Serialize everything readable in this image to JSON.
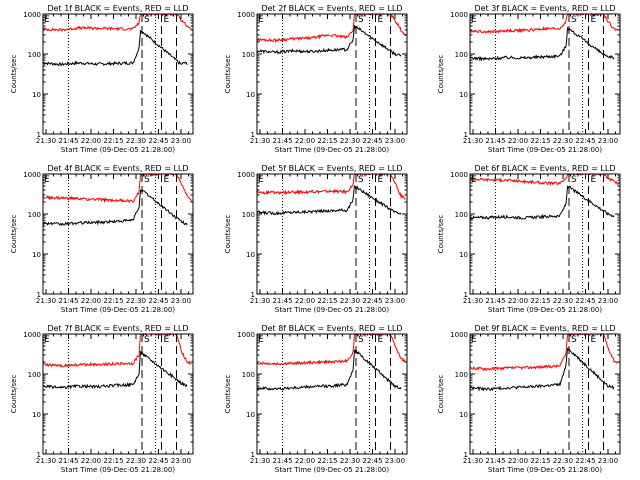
{
  "figure": {
    "background": "#ffffff",
    "axis_color": "#000000",
    "events_color": "#000000",
    "lld_color": "#ff0000",
    "marker_labels": [
      "E",
      "S",
      "E"
    ]
  },
  "chart_data": [
    {
      "type": "line",
      "title": "Det 1f BLACK = Events, RED = LLD",
      "xlabel": "Start Time (09-Dec-05 21:28:00)",
      "ylabel": "Counts/sec",
      "yscale": "log",
      "ylim": [
        1,
        1000
      ],
      "xlim": [
        "21:28",
        "23:08"
      ],
      "x_ticks": [
        "21:30",
        "21:45",
        "22:00",
        "22:15",
        "22:30",
        "22:45",
        "23:00"
      ],
      "y_ticks": [
        "1",
        "10",
        "100",
        "1000"
      ],
      "grid": false,
      "series": [
        {
          "name": "Events",
          "color": "#000000",
          "x": [
            "21:28",
            "21:40",
            "21:52",
            "22:04",
            "22:16",
            "22:28",
            "22:32",
            "22:33",
            "23:00",
            "23:02",
            "23:04"
          ],
          "y": [
            60,
            55,
            60,
            56,
            58,
            60,
            140,
            400,
            55,
            60,
            58
          ]
        },
        {
          "name": "LLD",
          "color": "#ff0000",
          "x": [
            "21:28",
            "21:40",
            "21:52",
            "22:04",
            "22:16",
            "22:28",
            "22:32",
            "22:33",
            "22:57",
            "23:00",
            "23:04",
            "23:07"
          ],
          "y": [
            420,
            400,
            450,
            440,
            430,
            420,
            600,
            1000,
            1000,
            700,
            500,
            440
          ]
        }
      ],
      "vlines": [
        {
          "time": "21:45",
          "style": "dotted"
        },
        {
          "time": "22:34",
          "style": "dashed",
          "label": "S"
        },
        {
          "time": "22:43",
          "style": "dotted"
        },
        {
          "time": "22:47",
          "style": "dashed",
          "label": "E"
        },
        {
          "time": "22:57",
          "style": "dashed"
        }
      ]
    },
    {
      "type": "line",
      "title": "Det 2f BLACK = Events, RED = LLD",
      "xlabel": "Start Time (09-Dec-05 21:28:00)",
      "ylabel": "Counts/sec",
      "yscale": "log",
      "ylim": [
        1,
        1000
      ],
      "xlim": [
        "21:28",
        "23:08"
      ],
      "x_ticks": [
        "21:30",
        "21:45",
        "22:00",
        "22:15",
        "22:30",
        "22:45",
        "23:00"
      ],
      "y_ticks": [
        "1",
        "10",
        "100",
        "1000"
      ],
      "grid": false,
      "series": [
        {
          "name": "Events",
          "color": "#000000",
          "x": [
            "21:28",
            "21:40",
            "21:52",
            "22:04",
            "22:16",
            "22:28",
            "22:32",
            "22:33",
            "23:00",
            "23:02",
            "23:04"
          ],
          "y": [
            120,
            110,
            120,
            115,
            125,
            130,
            220,
            500,
            100,
            95,
            90
          ]
        },
        {
          "name": "LLD",
          "color": "#ff0000",
          "x": [
            "21:28",
            "21:40",
            "21:52",
            "22:04",
            "22:16",
            "22:28",
            "22:32",
            "22:33",
            "22:57",
            "23:00",
            "23:04",
            "23:07"
          ],
          "y": [
            230,
            220,
            240,
            250,
            300,
            260,
            400,
            1000,
            1000,
            700,
            400,
            300
          ]
        }
      ],
      "vlines": [
        {
          "time": "21:45",
          "style": "dotted"
        },
        {
          "time": "22:34",
          "style": "dashed",
          "label": "S"
        },
        {
          "time": "22:43",
          "style": "dotted"
        },
        {
          "time": "22:47",
          "style": "dashed",
          "label": "E"
        },
        {
          "time": "22:57",
          "style": "dashed"
        }
      ]
    },
    {
      "type": "line",
      "title": "Det 3f BLACK = Events, RED = LLD",
      "xlabel": "Start Time (09-Dec-05 21:28:00)",
      "ylabel": "Counts/sec",
      "yscale": "log",
      "ylim": [
        1,
        1000
      ],
      "xlim": [
        "21:28",
        "23:08"
      ],
      "x_ticks": [
        "21:30",
        "21:45",
        "22:00",
        "22:15",
        "22:30",
        "22:45",
        "23:00"
      ],
      "y_ticks": [
        "1",
        "10",
        "100",
        "1000"
      ],
      "grid": false,
      "series": [
        {
          "name": "Events",
          "color": "#000000",
          "x": [
            "21:28",
            "21:40",
            "21:52",
            "22:04",
            "22:16",
            "22:28",
            "22:32",
            "22:33",
            "23:00",
            "23:02",
            "23:04"
          ],
          "y": [
            80,
            75,
            82,
            80,
            85,
            90,
            160,
            450,
            80,
            85,
            80
          ]
        },
        {
          "name": "LLD",
          "color": "#ff0000",
          "x": [
            "21:28",
            "21:40",
            "21:52",
            "22:04",
            "22:16",
            "22:28",
            "22:32",
            "22:33",
            "22:57",
            "23:00",
            "23:04",
            "23:07"
          ],
          "y": [
            380,
            360,
            380,
            390,
            420,
            430,
            650,
            1000,
            1000,
            650,
            420,
            380
          ]
        }
      ],
      "vlines": [
        {
          "time": "21:45",
          "style": "dotted"
        },
        {
          "time": "22:34",
          "style": "dashed",
          "label": "S"
        },
        {
          "time": "22:43",
          "style": "dotted"
        },
        {
          "time": "22:47",
          "style": "dashed",
          "label": "E"
        },
        {
          "time": "22:57",
          "style": "dashed"
        }
      ]
    },
    {
      "type": "line",
      "title": "Det 4f BLACK = Events, RED = LLD",
      "xlabel": "Start Time (09-Dec-05 21:28:00)",
      "ylabel": "Counts/sec",
      "yscale": "log",
      "ylim": [
        1,
        1000
      ],
      "xlim": [
        "21:28",
        "23:08"
      ],
      "x_ticks": [
        "21:30",
        "21:45",
        "22:00",
        "22:15",
        "22:30",
        "22:45",
        "23:00"
      ],
      "y_ticks": [
        "1",
        "10",
        "100",
        "1000"
      ],
      "grid": false,
      "series": [
        {
          "name": "Events",
          "color": "#000000",
          "x": [
            "21:28",
            "21:40",
            "21:52",
            "22:04",
            "22:16",
            "22:28",
            "22:32",
            "22:33",
            "23:00",
            "23:02",
            "23:04"
          ],
          "y": [
            60,
            55,
            60,
            62,
            65,
            70,
            150,
            420,
            65,
            60,
            55
          ]
        },
        {
          "name": "LLD",
          "color": "#ff0000",
          "x": [
            "21:28",
            "21:40",
            "21:52",
            "22:04",
            "22:16",
            "22:28",
            "22:32",
            "22:33",
            "22:57",
            "23:00",
            "23:04",
            "23:07"
          ],
          "y": [
            260,
            250,
            240,
            230,
            220,
            210,
            350,
            1000,
            1000,
            600,
            300,
            200
          ]
        }
      ],
      "vlines": [
        {
          "time": "21:45",
          "style": "dotted"
        },
        {
          "time": "22:34",
          "style": "dashed",
          "label": "S"
        },
        {
          "time": "22:43",
          "style": "dotted"
        },
        {
          "time": "22:47",
          "style": "dashed",
          "label": "E"
        },
        {
          "time": "22:57",
          "style": "dashed"
        }
      ]
    },
    {
      "type": "line",
      "title": "Det 5f BLACK = Events, RED = LLD",
      "xlabel": "Start Time (09-Dec-05 21:28:00)",
      "ylabel": "Counts/sec",
      "yscale": "log",
      "ylim": [
        1,
        1000
      ],
      "xlim": [
        "21:28",
        "23:08"
      ],
      "x_ticks": [
        "21:30",
        "21:45",
        "22:00",
        "22:15",
        "22:30",
        "22:45",
        "23:00"
      ],
      "y_ticks": [
        "1",
        "10",
        "100",
        "1000"
      ],
      "grid": false,
      "series": [
        {
          "name": "Events",
          "color": "#000000",
          "x": [
            "21:28",
            "21:40",
            "21:52",
            "22:04",
            "22:16",
            "22:28",
            "22:32",
            "22:33",
            "23:00",
            "23:02",
            "23:04"
          ],
          "y": [
            110,
            105,
            110,
            115,
            120,
            125,
            220,
            500,
            110,
            105,
            100
          ]
        },
        {
          "name": "LLD",
          "color": "#ff0000",
          "x": [
            "21:28",
            "21:40",
            "21:52",
            "22:04",
            "22:16",
            "22:28",
            "22:32",
            "22:33",
            "22:57",
            "23:00",
            "23:04",
            "23:07"
          ],
          "y": [
            350,
            340,
            350,
            360,
            370,
            360,
            550,
            1000,
            1000,
            600,
            280,
            250
          ]
        }
      ],
      "vlines": [
        {
          "time": "21:45",
          "style": "dotted"
        },
        {
          "time": "22:34",
          "style": "dashed",
          "label": "S"
        },
        {
          "time": "22:43",
          "style": "dotted"
        },
        {
          "time": "22:47",
          "style": "dashed",
          "label": "E"
        },
        {
          "time": "22:57",
          "style": "dashed"
        }
      ]
    },
    {
      "type": "line",
      "title": "Det 6f BLACK = Events, RED = LLD",
      "xlabel": "Start Time (09-Dec-05 21:28:00)",
      "ylabel": "Counts/sec",
      "yscale": "log",
      "ylim": [
        1,
        1000
      ],
      "xlim": [
        "21:28",
        "23:08"
      ],
      "x_ticks": [
        "21:30",
        "21:45",
        "22:00",
        "22:15",
        "22:30",
        "22:45",
        "23:00"
      ],
      "y_ticks": [
        "1",
        "10",
        "100",
        "1000"
      ],
      "grid": false,
      "series": [
        {
          "name": "Events",
          "color": "#000000",
          "x": [
            "21:28",
            "21:40",
            "21:52",
            "22:04",
            "22:16",
            "22:28",
            "22:32",
            "22:33",
            "23:00",
            "23:02",
            "23:04"
          ],
          "y": [
            80,
            82,
            85,
            80,
            85,
            90,
            180,
            500,
            100,
            95,
            90
          ]
        },
        {
          "name": "LLD",
          "color": "#ff0000",
          "x": [
            "21:28",
            "21:40",
            "21:52",
            "22:04",
            "22:16",
            "22:28",
            "22:32",
            "22:33",
            "22:57",
            "23:00",
            "23:04",
            "23:07"
          ],
          "y": [
            750,
            720,
            700,
            650,
            600,
            580,
            800,
            1000,
            1000,
            800,
            650,
            550
          ]
        }
      ],
      "vlines": [
        {
          "time": "21:45",
          "style": "dotted"
        },
        {
          "time": "22:34",
          "style": "dashed",
          "label": "S"
        },
        {
          "time": "22:43",
          "style": "dotted"
        },
        {
          "time": "22:47",
          "style": "dashed",
          "label": "E"
        },
        {
          "time": "22:57",
          "style": "dashed"
        }
      ]
    },
    {
      "type": "line",
      "title": "Det 7f BLACK = Events, RED = LLD",
      "xlabel": "Start Time (09-Dec-05 21:28:00)",
      "ylabel": "Counts/sec",
      "yscale": "log",
      "ylim": [
        1,
        1000
      ],
      "xlim": [
        "21:28",
        "23:08"
      ],
      "x_ticks": [
        "21:30",
        "21:45",
        "22:00",
        "22:15",
        "22:30",
        "22:45",
        "23:00"
      ],
      "y_ticks": [
        "1",
        "10",
        "100",
        "1000"
      ],
      "grid": false,
      "series": [
        {
          "name": "Events",
          "color": "#000000",
          "x": [
            "21:28",
            "21:40",
            "21:52",
            "22:04",
            "22:16",
            "22:28",
            "22:32",
            "22:33",
            "23:00",
            "23:02",
            "23:04"
          ],
          "y": [
            50,
            45,
            50,
            48,
            52,
            55,
            100,
            350,
            60,
            55,
            50
          ]
        },
        {
          "name": "LLD",
          "color": "#ff0000",
          "x": [
            "21:28",
            "21:40",
            "21:52",
            "22:04",
            "22:16",
            "22:28",
            "22:32",
            "22:33",
            "22:57",
            "23:00",
            "23:04",
            "23:07"
          ],
          "y": [
            170,
            160,
            170,
            175,
            180,
            185,
            300,
            1000,
            1000,
            400,
            200,
            180
          ]
        }
      ],
      "vlines": [
        {
          "time": "21:45",
          "style": "dotted"
        },
        {
          "time": "22:34",
          "style": "dashed",
          "label": "S"
        },
        {
          "time": "22:43",
          "style": "dotted"
        },
        {
          "time": "22:47",
          "style": "dashed",
          "label": "E"
        },
        {
          "time": "22:57",
          "style": "dashed"
        }
      ]
    },
    {
      "type": "line",
      "title": "Det 8f BLACK = Events, RED = LLD",
      "xlabel": "Start Time (09-Dec-05 21:28:00)",
      "ylabel": "Counts/sec",
      "yscale": "log",
      "ylim": [
        1,
        1000
      ],
      "xlim": [
        "21:28",
        "23:08"
      ],
      "x_ticks": [
        "21:30",
        "21:45",
        "22:00",
        "22:15",
        "22:30",
        "22:45",
        "23:00"
      ],
      "y_ticks": [
        "1",
        "10",
        "100",
        "1000"
      ],
      "grid": false,
      "series": [
        {
          "name": "Events",
          "color": "#000000",
          "x": [
            "21:28",
            "21:40",
            "21:52",
            "22:04",
            "22:16",
            "22:28",
            "22:32",
            "22:33",
            "23:00",
            "23:02",
            "23:04"
          ],
          "y": [
            45,
            42,
            45,
            48,
            50,
            55,
            130,
            400,
            50,
            48,
            45
          ]
        },
        {
          "name": "LLD",
          "color": "#ff0000",
          "x": [
            "21:28",
            "21:40",
            "21:52",
            "22:04",
            "22:16",
            "22:28",
            "22:32",
            "22:33",
            "22:57",
            "23:00",
            "23:04",
            "23:07"
          ],
          "y": [
            190,
            180,
            185,
            195,
            200,
            210,
            350,
            1000,
            1000,
            500,
            250,
            200
          ]
        }
      ],
      "vlines": [
        {
          "time": "21:45",
          "style": "dotted"
        },
        {
          "time": "22:34",
          "style": "dashed",
          "label": "S"
        },
        {
          "time": "22:43",
          "style": "dotted"
        },
        {
          "time": "22:47",
          "style": "dashed",
          "label": "E"
        },
        {
          "time": "22:57",
          "style": "dashed"
        }
      ]
    },
    {
      "type": "line",
      "title": "Det 9f BLACK = Events, RED = LLD",
      "xlabel": "Start Time (09-Dec-05 21:28:00)",
      "ylabel": "Counts/sec",
      "yscale": "log",
      "ylim": [
        1,
        1000
      ],
      "xlim": [
        "21:28",
        "23:08"
      ],
      "x_ticks": [
        "21:30",
        "21:45",
        "22:00",
        "22:15",
        "22:30",
        "22:45",
        "23:00"
      ],
      "y_ticks": [
        "1",
        "10",
        "100",
        "1000"
      ],
      "grid": false,
      "series": [
        {
          "name": "Events",
          "color": "#000000",
          "x": [
            "21:28",
            "21:40",
            "21:52",
            "22:04",
            "22:16",
            "22:28",
            "22:32",
            "22:33",
            "23:00",
            "23:02",
            "23:04"
          ],
          "y": [
            45,
            42,
            45,
            47,
            50,
            55,
            160,
            450,
            50,
            48,
            45
          ]
        },
        {
          "name": "LLD",
          "color": "#ff0000",
          "x": [
            "21:28",
            "21:40",
            "21:52",
            "22:04",
            "22:16",
            "22:28",
            "22:32",
            "22:33",
            "22:57",
            "23:00",
            "23:04",
            "23:07"
          ],
          "y": [
            140,
            135,
            140,
            145,
            150,
            160,
            330,
            1000,
            1000,
            450,
            220,
            180
          ]
        }
      ],
      "vlines": [
        {
          "time": "21:45",
          "style": "dotted"
        },
        {
          "time": "22:34",
          "style": "dashed",
          "label": "S"
        },
        {
          "time": "22:43",
          "style": "dotted"
        },
        {
          "time": "22:47",
          "style": "dashed",
          "label": "E"
        },
        {
          "time": "22:57",
          "style": "dashed"
        }
      ]
    }
  ]
}
